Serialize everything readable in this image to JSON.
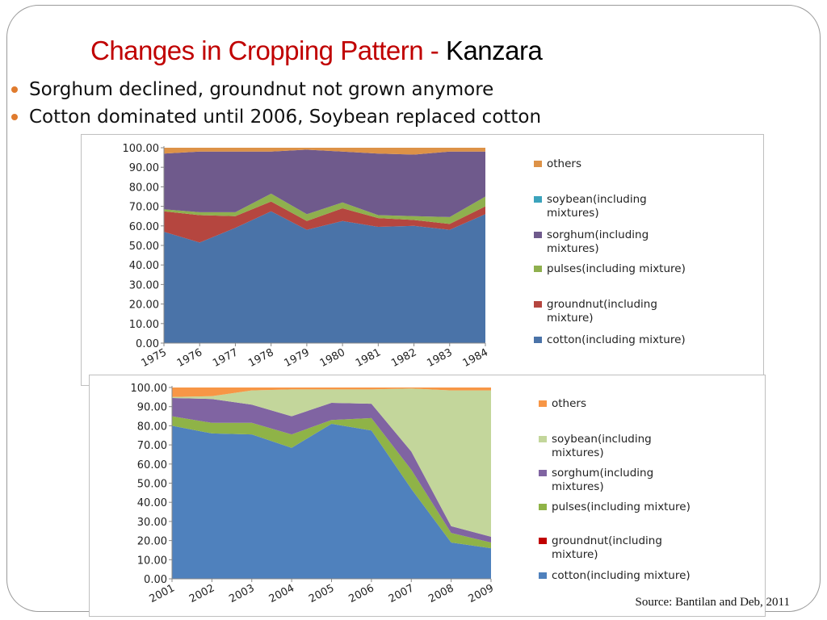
{
  "slide": {
    "title": "Changes in Cropping Pattern - ",
    "title_place": "Kanzara",
    "bullets": [
      "Sorghum declined, groundnut not grown anymore",
      "Cotton dominated until 2006, Soybean replaced cotton"
    ],
    "source": "Source: Bantilan and Deb, 2011",
    "bullet_color": "#e07b2e",
    "title_color": "#c00000"
  },
  "chart_data": [
    {
      "type": "area",
      "stacked": true,
      "categories": [
        "1975",
        "1976",
        "1977",
        "1978",
        "1979",
        "1980",
        "1981",
        "1982",
        "1983",
        "1984"
      ],
      "ylim": [
        0,
        100
      ],
      "yticks": [
        "0.00",
        "10.00",
        "20.00",
        "30.00",
        "40.00",
        "50.00",
        "60.00",
        "70.00",
        "80.00",
        "90.00",
        "100.00"
      ],
      "grid": false,
      "legend": "right",
      "series": [
        {
          "name": "cotton(including mixture)",
          "label_lines": [
            "cotton(including mixture)"
          ],
          "color": "#4a73a8",
          "values": [
            57,
            51.5,
            59,
            67.5,
            58,
            62.5,
            59.5,
            60,
            58,
            66
          ]
        },
        {
          "name": "groundnut(including mixture)",
          "label_lines": [
            "groundnut(including",
            "mixture)"
          ],
          "color": "#b5463f",
          "values": [
            10.5,
            14,
            6,
            5,
            4.5,
            6.5,
            4.5,
            3,
            3,
            4
          ]
        },
        {
          "name": "pulses(including mixture)",
          "label_lines": [
            "pulses(including mixture)"
          ],
          "color": "#8fb04e",
          "values": [
            1,
            1.5,
            2,
            4,
            3.5,
            3,
            1.5,
            2,
            3.5,
            5
          ]
        },
        {
          "name": "sorghum(including mixtures)",
          "label_lines": [
            "sorghum(including",
            "mixtures)"
          ],
          "color": "#6f5a8c",
          "values": [
            28.5,
            31,
            31,
            21.5,
            33,
            26,
            31.5,
            31.5,
            33.5,
            23
          ]
        },
        {
          "name": "soybean(including mixtures)",
          "label_lines": [
            "soybean(including",
            "mixtures)"
          ],
          "color": "#3ba3bc",
          "values": [
            0,
            0,
            0,
            0,
            0,
            0,
            0,
            0,
            0,
            0
          ]
        },
        {
          "name": "others",
          "label_lines": [
            "others"
          ],
          "color": "#dd9247",
          "values": [
            3,
            2,
            2,
            2,
            1,
            2,
            3,
            3.5,
            2,
            2
          ]
        }
      ]
    },
    {
      "type": "area",
      "stacked": true,
      "categories": [
        "2001",
        "2002",
        "2003",
        "2004",
        "2005",
        "2006",
        "2007",
        "2008",
        "2009"
      ],
      "ylim": [
        0,
        100
      ],
      "yticks": [
        "0.00",
        "10.00",
        "20.00",
        "30.00",
        "40.00",
        "50.00",
        "60.00",
        "70.00",
        "80.00",
        "90.00",
        "100.00"
      ],
      "grid": false,
      "legend": "right",
      "series": [
        {
          "name": "cotton(including mixture)",
          "label_lines": [
            "cotton(including mixture)"
          ],
          "color": "#4f81bd",
          "values": [
            80,
            76,
            75.5,
            68.5,
            81,
            77.5,
            47,
            19,
            16
          ]
        },
        {
          "name": "groundnut(including mixture)",
          "label_lines": [
            "groundnut(including",
            "mixture)"
          ],
          "color": "#c00000",
          "values": [
            0,
            0,
            0,
            0,
            0,
            0,
            0,
            0,
            0
          ]
        },
        {
          "name": "pulses(including mixture)",
          "label_lines": [
            "pulses(including mixture)"
          ],
          "color": "#8fb347",
          "values": [
            5,
            5.5,
            6,
            7,
            2,
            6.5,
            10,
            5,
            3
          ]
        },
        {
          "name": "sorghum(including mixtures)",
          "label_lines": [
            "sorghum(including",
            "mixtures)"
          ],
          "color": "#8064a2",
          "values": [
            9.5,
            12.5,
            9.5,
            9.5,
            9,
            7.5,
            9.5,
            3.5,
            3
          ]
        },
        {
          "name": "soybean(including mixtures)",
          "label_lines": [
            "soybean(including",
            "mixtures)"
          ],
          "color": "#c3d69b",
          "values": [
            0.5,
            1.5,
            7.5,
            14,
            7,
            7.5,
            33,
            71,
            76.5
          ]
        },
        {
          "name": "others",
          "label_lines": [
            "others"
          ],
          "color": "#f79646",
          "values": [
            5,
            4.5,
            1.5,
            1,
            1,
            1,
            0.5,
            1.5,
            1.5
          ]
        }
      ]
    }
  ]
}
